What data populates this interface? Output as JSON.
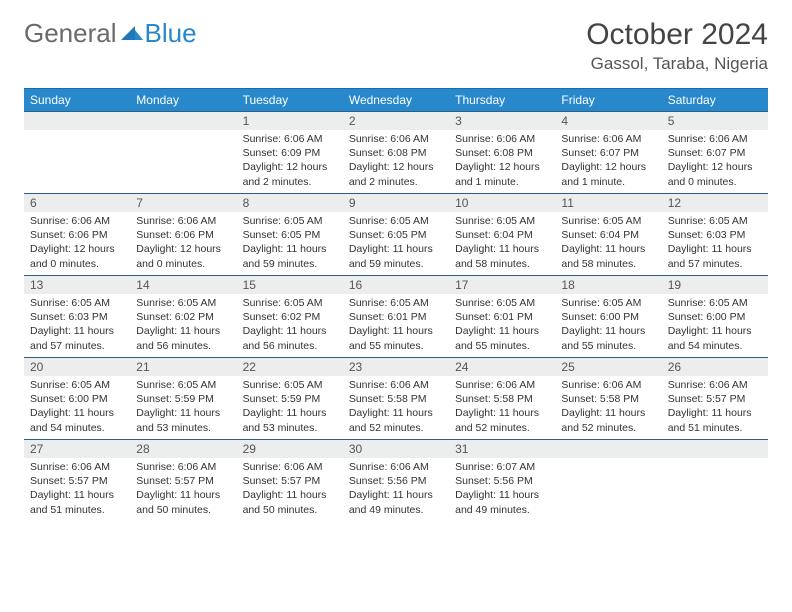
{
  "logo": {
    "text1": "General",
    "text2": "Blue"
  },
  "title": "October 2024",
  "location": "Gassol, Taraba, Nigeria",
  "colors": {
    "header_bg": "#2888cc",
    "header_text": "#ffffff",
    "daynum_bg": "#eceded",
    "border_top": "#2e5d88",
    "body_text": "#333333",
    "logo_gray": "#6a6a6a",
    "logo_blue": "#2888cc"
  },
  "weekdays": [
    "Sunday",
    "Monday",
    "Tuesday",
    "Wednesday",
    "Thursday",
    "Friday",
    "Saturday"
  ],
  "grid": [
    [
      null,
      null,
      {
        "n": "1",
        "sr": "Sunrise: 6:06 AM",
        "ss": "Sunset: 6:09 PM",
        "dl": "Daylight: 12 hours and 2 minutes."
      },
      {
        "n": "2",
        "sr": "Sunrise: 6:06 AM",
        "ss": "Sunset: 6:08 PM",
        "dl": "Daylight: 12 hours and 2 minutes."
      },
      {
        "n": "3",
        "sr": "Sunrise: 6:06 AM",
        "ss": "Sunset: 6:08 PM",
        "dl": "Daylight: 12 hours and 1 minute."
      },
      {
        "n": "4",
        "sr": "Sunrise: 6:06 AM",
        "ss": "Sunset: 6:07 PM",
        "dl": "Daylight: 12 hours and 1 minute."
      },
      {
        "n": "5",
        "sr": "Sunrise: 6:06 AM",
        "ss": "Sunset: 6:07 PM",
        "dl": "Daylight: 12 hours and 0 minutes."
      }
    ],
    [
      {
        "n": "6",
        "sr": "Sunrise: 6:06 AM",
        "ss": "Sunset: 6:06 PM",
        "dl": "Daylight: 12 hours and 0 minutes."
      },
      {
        "n": "7",
        "sr": "Sunrise: 6:06 AM",
        "ss": "Sunset: 6:06 PM",
        "dl": "Daylight: 12 hours and 0 minutes."
      },
      {
        "n": "8",
        "sr": "Sunrise: 6:05 AM",
        "ss": "Sunset: 6:05 PM",
        "dl": "Daylight: 11 hours and 59 minutes."
      },
      {
        "n": "9",
        "sr": "Sunrise: 6:05 AM",
        "ss": "Sunset: 6:05 PM",
        "dl": "Daylight: 11 hours and 59 minutes."
      },
      {
        "n": "10",
        "sr": "Sunrise: 6:05 AM",
        "ss": "Sunset: 6:04 PM",
        "dl": "Daylight: 11 hours and 58 minutes."
      },
      {
        "n": "11",
        "sr": "Sunrise: 6:05 AM",
        "ss": "Sunset: 6:04 PM",
        "dl": "Daylight: 11 hours and 58 minutes."
      },
      {
        "n": "12",
        "sr": "Sunrise: 6:05 AM",
        "ss": "Sunset: 6:03 PM",
        "dl": "Daylight: 11 hours and 57 minutes."
      }
    ],
    [
      {
        "n": "13",
        "sr": "Sunrise: 6:05 AM",
        "ss": "Sunset: 6:03 PM",
        "dl": "Daylight: 11 hours and 57 minutes."
      },
      {
        "n": "14",
        "sr": "Sunrise: 6:05 AM",
        "ss": "Sunset: 6:02 PM",
        "dl": "Daylight: 11 hours and 56 minutes."
      },
      {
        "n": "15",
        "sr": "Sunrise: 6:05 AM",
        "ss": "Sunset: 6:02 PM",
        "dl": "Daylight: 11 hours and 56 minutes."
      },
      {
        "n": "16",
        "sr": "Sunrise: 6:05 AM",
        "ss": "Sunset: 6:01 PM",
        "dl": "Daylight: 11 hours and 55 minutes."
      },
      {
        "n": "17",
        "sr": "Sunrise: 6:05 AM",
        "ss": "Sunset: 6:01 PM",
        "dl": "Daylight: 11 hours and 55 minutes."
      },
      {
        "n": "18",
        "sr": "Sunrise: 6:05 AM",
        "ss": "Sunset: 6:00 PM",
        "dl": "Daylight: 11 hours and 55 minutes."
      },
      {
        "n": "19",
        "sr": "Sunrise: 6:05 AM",
        "ss": "Sunset: 6:00 PM",
        "dl": "Daylight: 11 hours and 54 minutes."
      }
    ],
    [
      {
        "n": "20",
        "sr": "Sunrise: 6:05 AM",
        "ss": "Sunset: 6:00 PM",
        "dl": "Daylight: 11 hours and 54 minutes."
      },
      {
        "n": "21",
        "sr": "Sunrise: 6:05 AM",
        "ss": "Sunset: 5:59 PM",
        "dl": "Daylight: 11 hours and 53 minutes."
      },
      {
        "n": "22",
        "sr": "Sunrise: 6:05 AM",
        "ss": "Sunset: 5:59 PM",
        "dl": "Daylight: 11 hours and 53 minutes."
      },
      {
        "n": "23",
        "sr": "Sunrise: 6:06 AM",
        "ss": "Sunset: 5:58 PM",
        "dl": "Daylight: 11 hours and 52 minutes."
      },
      {
        "n": "24",
        "sr": "Sunrise: 6:06 AM",
        "ss": "Sunset: 5:58 PM",
        "dl": "Daylight: 11 hours and 52 minutes."
      },
      {
        "n": "25",
        "sr": "Sunrise: 6:06 AM",
        "ss": "Sunset: 5:58 PM",
        "dl": "Daylight: 11 hours and 52 minutes."
      },
      {
        "n": "26",
        "sr": "Sunrise: 6:06 AM",
        "ss": "Sunset: 5:57 PM",
        "dl": "Daylight: 11 hours and 51 minutes."
      }
    ],
    [
      {
        "n": "27",
        "sr": "Sunrise: 6:06 AM",
        "ss": "Sunset: 5:57 PM",
        "dl": "Daylight: 11 hours and 51 minutes."
      },
      {
        "n": "28",
        "sr": "Sunrise: 6:06 AM",
        "ss": "Sunset: 5:57 PM",
        "dl": "Daylight: 11 hours and 50 minutes."
      },
      {
        "n": "29",
        "sr": "Sunrise: 6:06 AM",
        "ss": "Sunset: 5:57 PM",
        "dl": "Daylight: 11 hours and 50 minutes."
      },
      {
        "n": "30",
        "sr": "Sunrise: 6:06 AM",
        "ss": "Sunset: 5:56 PM",
        "dl": "Daylight: 11 hours and 49 minutes."
      },
      {
        "n": "31",
        "sr": "Sunrise: 6:07 AM",
        "ss": "Sunset: 5:56 PM",
        "dl": "Daylight: 11 hours and 49 minutes."
      },
      null,
      null
    ]
  ]
}
